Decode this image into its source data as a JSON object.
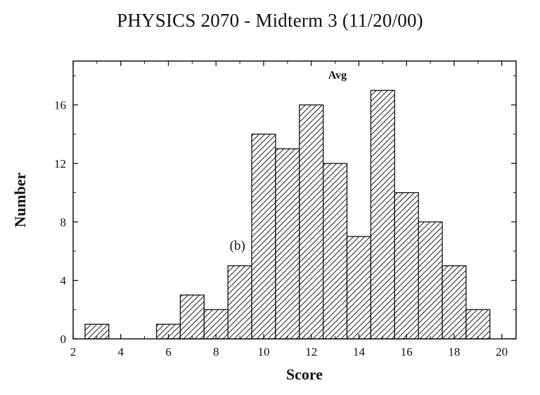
{
  "chart_data": {
    "type": "bar",
    "title": "PHYSICS 2070 - Midterm 3 (11/20/00)",
    "xlabel": "Score",
    "ylabel": "Number",
    "xlim": [
      2,
      20.6
    ],
    "ylim": [
      0,
      19
    ],
    "xticks": [
      "2",
      "4",
      "6",
      "8",
      "10",
      "12",
      "14",
      "16",
      "18",
      "20"
    ],
    "yticks": [
      "0",
      "4",
      "8",
      "12",
      "16"
    ],
    "bin_width": 1,
    "x": [
      3,
      4,
      5,
      6,
      7,
      8,
      9,
      10,
      11,
      12,
      13,
      14,
      15,
      16,
      17,
      18,
      19
    ],
    "values": [
      1,
      0,
      0,
      1,
      3,
      2,
      5,
      14,
      13,
      16,
      12,
      7,
      17,
      10,
      8,
      5,
      2
    ],
    "grid": false,
    "bar_fill": "diagonal-hatch",
    "annotations": [
      {
        "text": "Avg",
        "x": 13.1,
        "y": 17.8
      },
      {
        "text": "(b)",
        "x": 8.9,
        "y": 6.1
      }
    ]
  }
}
